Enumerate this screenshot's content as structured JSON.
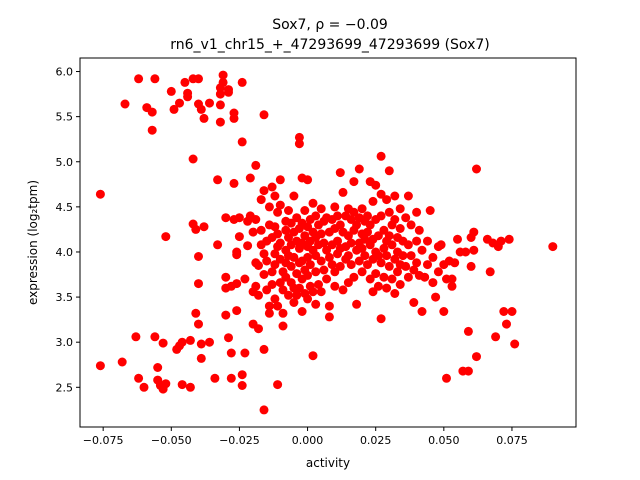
{
  "chart_data": {
    "type": "scatter",
    "title_line1": "Sox7, ρ = −0.09",
    "title_line2": "rn6_v1_chr15_+_47293699_47293699 (Sox7)",
    "xlabel": "activity",
    "ylabel": "expression (log₂tpm)",
    "xlim": [
      -0.0835,
      0.0985
    ],
    "ylim": [
      2.06,
      6.15
    ],
    "x_ticks": [
      -0.075,
      -0.05,
      -0.025,
      0.0,
      0.025,
      0.05,
      0.075
    ],
    "x_tick_labels": [
      "−0.075",
      "−0.050",
      "−0.025",
      "0.000",
      "0.025",
      "0.050",
      "0.075"
    ],
    "y_ticks": [
      2.5,
      3.0,
      3.5,
      4.0,
      4.5,
      5.0,
      5.5,
      6.0
    ],
    "y_tick_labels": [
      "2.5",
      "3.0",
      "3.5",
      "4.0",
      "4.5",
      "5.0",
      "5.5",
      "6.0"
    ],
    "grid": false,
    "marker_color": "#ff0000",
    "points": [
      [
        -0.076,
        4.64
      ],
      [
        -0.076,
        2.74
      ],
      [
        -0.067,
        5.64
      ],
      [
        -0.068,
        2.78
      ],
      [
        -0.063,
        3.06
      ],
      [
        -0.062,
        5.92
      ],
      [
        -0.062,
        2.6
      ],
      [
        -0.06,
        2.5
      ],
      [
        -0.059,
        5.6
      ],
      [
        -0.056,
        5.92
      ],
      [
        -0.057,
        5.55
      ],
      [
        -0.057,
        5.35
      ],
      [
        -0.056,
        3.06
      ],
      [
        -0.055,
        2.72
      ],
      [
        -0.055,
        2.58
      ],
      [
        -0.054,
        2.52
      ],
      [
        -0.053,
        2.99
      ],
      [
        -0.053,
        2.48
      ],
      [
        -0.052,
        4.17
      ],
      [
        -0.052,
        2.54
      ],
      [
        -0.05,
        5.78
      ],
      [
        -0.049,
        5.58
      ],
      [
        -0.048,
        2.92
      ],
      [
        -0.047,
        2.96
      ],
      [
        -0.047,
        5.65
      ],
      [
        -0.046,
        3.0
      ],
      [
        -0.046,
        2.53
      ],
      [
        -0.045,
        5.88
      ],
      [
        -0.044,
        5.76
      ],
      [
        -0.044,
        5.72
      ],
      [
        -0.043,
        2.5
      ],
      [
        -0.043,
        3.02
      ],
      [
        -0.042,
        5.92
      ],
      [
        -0.042,
        5.03
      ],
      [
        -0.042,
        4.31
      ],
      [
        -0.041,
        4.25
      ],
      [
        -0.041,
        3.32
      ],
      [
        -0.04,
        3.2
      ],
      [
        -0.04,
        3.65
      ],
      [
        -0.04,
        3.95
      ],
      [
        -0.04,
        5.92
      ],
      [
        -0.04,
        5.64
      ],
      [
        -0.039,
        5.58
      ],
      [
        -0.039,
        2.82
      ],
      [
        -0.039,
        2.98
      ],
      [
        -0.038,
        5.48
      ],
      [
        -0.038,
        4.28
      ],
      [
        -0.036,
        3.0
      ],
      [
        -0.036,
        5.65
      ],
      [
        -0.034,
        2.6
      ],
      [
        -0.033,
        4.8
      ],
      [
        -0.033,
        4.08
      ],
      [
        -0.032,
        5.82
      ],
      [
        -0.032,
        5.75
      ],
      [
        -0.032,
        5.44
      ],
      [
        -0.032,
        5.63
      ],
      [
        -0.031,
        5.96
      ],
      [
        -0.031,
        5.88
      ],
      [
        -0.03,
        4.38
      ],
      [
        -0.03,
        3.72
      ],
      [
        -0.03,
        3.3
      ],
      [
        -0.03,
        3.6
      ],
      [
        -0.029,
        3.05
      ],
      [
        -0.029,
        5.8
      ],
      [
        -0.029,
        5.77
      ],
      [
        -0.028,
        3.62
      ],
      [
        -0.028,
        2.88
      ],
      [
        -0.028,
        2.6
      ],
      [
        -0.027,
        5.54
      ],
      [
        -0.027,
        5.48
      ],
      [
        -0.027,
        4.36
      ],
      [
        -0.027,
        4.76
      ],
      [
        -0.026,
        4.0
      ],
      [
        -0.026,
        3.97
      ],
      [
        -0.026,
        3.65
      ],
      [
        -0.026,
        3.35
      ],
      [
        -0.025,
        4.38
      ],
      [
        -0.025,
        4.17
      ],
      [
        -0.024,
        5.88
      ],
      [
        -0.024,
        5.22
      ],
      [
        -0.024,
        2.64
      ],
      [
        -0.024,
        2.52
      ],
      [
        -0.023,
        2.88
      ],
      [
        -0.023,
        3.7
      ],
      [
        -0.022,
        4.34
      ],
      [
        -0.022,
        4.07
      ],
      [
        -0.021,
        4.82
      ],
      [
        -0.021,
        4.4
      ],
      [
        -0.02,
        3.56
      ],
      [
        -0.02,
        3.2
      ],
      [
        -0.02,
        4.22
      ],
      [
        -0.019,
        4.96
      ],
      [
        -0.019,
        4.36
      ],
      [
        -0.019,
        3.88
      ],
      [
        -0.019,
        3.62
      ],
      [
        -0.018,
        3.85
      ],
      [
        -0.018,
        3.52
      ],
      [
        -0.018,
        3.15
      ],
      [
        -0.017,
        4.58
      ],
      [
        -0.017,
        4.24
      ],
      [
        -0.017,
        4.08
      ],
      [
        -0.016,
        5.52
      ],
      [
        -0.016,
        4.68
      ],
      [
        -0.016,
        3.98
      ],
      [
        -0.016,
        3.75
      ],
      [
        -0.016,
        2.92
      ],
      [
        -0.016,
        2.25
      ],
      [
        -0.015,
        4.12
      ],
      [
        -0.015,
        3.9
      ],
      [
        -0.015,
        3.58
      ],
      [
        -0.014,
        4.5
      ],
      [
        -0.014,
        4.3
      ],
      [
        -0.014,
        3.4
      ],
      [
        -0.014,
        3.32
      ],
      [
        -0.013,
        4.72
      ],
      [
        -0.013,
        4.16
      ],
      [
        -0.013,
        3.78
      ],
      [
        -0.013,
        3.64
      ],
      [
        -0.012,
        4.62
      ],
      [
        -0.012,
        4.28
      ],
      [
        -0.012,
        3.98
      ],
      [
        -0.012,
        3.86
      ],
      [
        -0.012,
        3.48
      ],
      [
        -0.011,
        4.44
      ],
      [
        -0.011,
        4.2
      ],
      [
        -0.011,
        4.06
      ],
      [
        -0.011,
        3.4
      ],
      [
        -0.011,
        2.53
      ],
      [
        -0.01,
        4.8
      ],
      [
        -0.01,
        4.52
      ],
      [
        -0.01,
        4.1
      ],
      [
        -0.01,
        3.92
      ],
      [
        -0.01,
        3.66
      ],
      [
        -0.009,
        3.78
      ],
      [
        -0.009,
        3.58
      ],
      [
        -0.009,
        3.32
      ],
      [
        -0.009,
        3.18
      ],
      [
        -0.008,
        4.34
      ],
      [
        -0.008,
        4.24
      ],
      [
        -0.008,
        4.02
      ],
      [
        -0.008,
        3.88
      ],
      [
        -0.008,
        3.72
      ],
      [
        -0.007,
        4.46
      ],
      [
        -0.007,
        4.16
      ],
      [
        -0.007,
        3.96
      ],
      [
        -0.007,
        3.52
      ],
      [
        -0.006,
        4.32
      ],
      [
        -0.006,
        4.08
      ],
      [
        -0.006,
        3.84
      ],
      [
        -0.006,
        3.66
      ],
      [
        -0.005,
        4.62
      ],
      [
        -0.005,
        4.22
      ],
      [
        -0.005,
        3.94
      ],
      [
        -0.005,
        3.6
      ],
      [
        -0.005,
        3.44
      ],
      [
        -0.004,
        4.38
      ],
      [
        -0.004,
        4.12
      ],
      [
        -0.004,
        3.76
      ],
      [
        -0.004,
        3.52
      ],
      [
        -0.003,
        5.27
      ],
      [
        -0.003,
        5.2
      ],
      [
        -0.003,
        4.26
      ],
      [
        -0.003,
        4.04
      ],
      [
        -0.003,
        3.88
      ],
      [
        -0.003,
        3.6
      ],
      [
        -0.002,
        4.82
      ],
      [
        -0.002,
        4.32
      ],
      [
        -0.002,
        4.1
      ],
      [
        -0.002,
        3.9
      ],
      [
        -0.002,
        3.7
      ],
      [
        -0.002,
        3.34
      ],
      [
        -0.001,
        4.46
      ],
      [
        -0.001,
        4.18
      ],
      [
        -0.001,
        3.8
      ],
      [
        -0.001,
        3.54
      ],
      [
        0.0,
        4.8
      ],
      [
        0.0,
        4.28
      ],
      [
        0.0,
        4.06
      ],
      [
        0.0,
        3.94
      ],
      [
        0.0,
        3.74
      ],
      [
        0.0,
        3.48
      ],
      [
        0.001,
        4.36
      ],
      [
        0.001,
        4.12
      ],
      [
        0.001,
        3.86
      ],
      [
        0.001,
        3.62
      ],
      [
        0.002,
        4.54
      ],
      [
        0.002,
        4.22
      ],
      [
        0.002,
        4.02
      ],
      [
        0.002,
        3.56
      ],
      [
        0.002,
        2.85
      ],
      [
        0.003,
        4.4
      ],
      [
        0.003,
        4.16
      ],
      [
        0.003,
        3.96
      ],
      [
        0.003,
        3.78
      ],
      [
        0.003,
        3.42
      ],
      [
        0.004,
        4.3
      ],
      [
        0.004,
        4.08
      ],
      [
        0.004,
        3.64
      ],
      [
        0.005,
        4.48
      ],
      [
        0.005,
        4.2
      ],
      [
        0.005,
        3.9
      ],
      [
        0.005,
        3.56
      ],
      [
        0.006,
        4.34
      ],
      [
        0.006,
        4.1
      ],
      [
        0.006,
        3.8
      ],
      [
        0.007,
        4.38
      ],
      [
        0.007,
        4.02
      ],
      [
        0.007,
        3.7
      ],
      [
        0.008,
        4.22
      ],
      [
        0.008,
        3.94
      ],
      [
        0.008,
        3.4
      ],
      [
        0.008,
        3.28
      ],
      [
        0.009,
        4.36
      ],
      [
        0.009,
        4.08
      ],
      [
        0.009,
        3.86
      ],
      [
        0.01,
        4.5
      ],
      [
        0.01,
        4.26
      ],
      [
        0.01,
        3.78
      ],
      [
        0.01,
        3.62
      ],
      [
        0.011,
        4.4
      ],
      [
        0.011,
        4.12
      ],
      [
        0.011,
        3.98
      ],
      [
        0.012,
        4.88
      ],
      [
        0.012,
        4.3
      ],
      [
        0.012,
        4.04
      ],
      [
        0.012,
        3.84
      ],
      [
        0.013,
        4.66
      ],
      [
        0.013,
        4.22
      ],
      [
        0.013,
        3.58
      ],
      [
        0.014,
        4.4
      ],
      [
        0.014,
        4.06
      ],
      [
        0.014,
        3.92
      ],
      [
        0.015,
        4.48
      ],
      [
        0.015,
        4.18
      ],
      [
        0.015,
        3.96
      ],
      [
        0.015,
        3.66
      ],
      [
        0.016,
        4.36
      ],
      [
        0.016,
        4.1
      ],
      [
        0.016,
        3.86
      ],
      [
        0.017,
        4.78
      ],
      [
        0.017,
        4.44
      ],
      [
        0.017,
        4.24
      ],
      [
        0.017,
        3.72
      ],
      [
        0.018,
        4.3
      ],
      [
        0.018,
        4.02
      ],
      [
        0.018,
        3.42
      ],
      [
        0.019,
        4.92
      ],
      [
        0.019,
        4.38
      ],
      [
        0.019,
        4.1
      ],
      [
        0.019,
        3.9
      ],
      [
        0.02,
        4.48
      ],
      [
        0.02,
        4.2
      ],
      [
        0.02,
        4.04
      ],
      [
        0.02,
        3.78
      ],
      [
        0.021,
        4.34
      ],
      [
        0.021,
        4.14
      ],
      [
        0.021,
        3.96
      ],
      [
        0.022,
        4.4
      ],
      [
        0.022,
        4.22
      ],
      [
        0.022,
        3.86
      ],
      [
        0.023,
        4.78
      ],
      [
        0.023,
        4.3
      ],
      [
        0.023,
        4.08
      ],
      [
        0.023,
        3.7
      ],
      [
        0.024,
        4.56
      ],
      [
        0.024,
        4.14
      ],
      [
        0.024,
        3.92
      ],
      [
        0.024,
        3.56
      ],
      [
        0.025,
        4.74
      ],
      [
        0.025,
        4.36
      ],
      [
        0.025,
        4.0
      ],
      [
        0.025,
        3.76
      ],
      [
        0.026,
        4.18
      ],
      [
        0.026,
        3.96
      ],
      [
        0.026,
        3.62
      ],
      [
        0.027,
        5.06
      ],
      [
        0.027,
        4.64
      ],
      [
        0.027,
        4.4
      ],
      [
        0.027,
        3.88
      ],
      [
        0.027,
        3.26
      ],
      [
        0.028,
        4.24
      ],
      [
        0.028,
        4.04
      ],
      [
        0.028,
        3.72
      ],
      [
        0.029,
        4.58
      ],
      [
        0.029,
        4.12
      ],
      [
        0.029,
        3.96
      ],
      [
        0.029,
        3.6
      ],
      [
        0.03,
        4.9
      ],
      [
        0.03,
        4.44
      ],
      [
        0.03,
        4.18
      ],
      [
        0.03,
        3.84
      ],
      [
        0.031,
        4.3
      ],
      [
        0.031,
        4.08
      ],
      [
        0.031,
        3.7
      ],
      [
        0.032,
        4.62
      ],
      [
        0.032,
        4.36
      ],
      [
        0.032,
        3.92
      ],
      [
        0.032,
        3.54
      ],
      [
        0.033,
        4.16
      ],
      [
        0.033,
        4.0
      ],
      [
        0.033,
        3.78
      ],
      [
        0.034,
        4.48
      ],
      [
        0.034,
        4.26
      ],
      [
        0.034,
        3.86
      ],
      [
        0.034,
        3.64
      ],
      [
        0.035,
        4.12
      ],
      [
        0.035,
        3.96
      ],
      [
        0.036,
        4.38
      ],
      [
        0.036,
        3.84
      ],
      [
        0.037,
        4.62
      ],
      [
        0.037,
        4.08
      ],
      [
        0.037,
        3.72
      ],
      [
        0.038,
        4.3
      ],
      [
        0.038,
        3.96
      ],
      [
        0.039,
        3.8
      ],
      [
        0.039,
        3.44
      ],
      [
        0.04,
        4.44
      ],
      [
        0.04,
        4.12
      ],
      [
        0.04,
        3.88
      ],
      [
        0.041,
        4.24
      ],
      [
        0.041,
        3.74
      ],
      [
        0.042,
        3.34
      ],
      [
        0.042,
        4.02
      ],
      [
        0.043,
        3.72
      ],
      [
        0.044,
        4.12
      ],
      [
        0.044,
        3.86
      ],
      [
        0.045,
        4.46
      ],
      [
        0.046,
        3.94
      ],
      [
        0.046,
        3.66
      ],
      [
        0.047,
        3.5
      ],
      [
        0.048,
        4.06
      ],
      [
        0.048,
        3.78
      ],
      [
        0.049,
        4.08
      ],
      [
        0.05,
        3.34
      ],
      [
        0.05,
        3.86
      ],
      [
        0.051,
        3.7
      ],
      [
        0.051,
        2.6
      ],
      [
        0.052,
        3.9
      ],
      [
        0.053,
        3.62
      ],
      [
        0.053,
        3.7
      ],
      [
        0.054,
        3.88
      ],
      [
        0.055,
        4.14
      ],
      [
        0.056,
        4.0
      ],
      [
        0.057,
        2.68
      ],
      [
        0.058,
        4.0
      ],
      [
        0.059,
        3.12
      ],
      [
        0.059,
        2.68
      ],
      [
        0.06,
        4.16
      ],
      [
        0.06,
        3.84
      ],
      [
        0.061,
        4.02
      ],
      [
        0.061,
        4.22
      ],
      [
        0.062,
        4.92
      ],
      [
        0.062,
        2.84
      ],
      [
        0.066,
        4.14
      ],
      [
        0.067,
        3.78
      ],
      [
        0.068,
        4.1
      ],
      [
        0.069,
        3.06
      ],
      [
        0.07,
        4.06
      ],
      [
        0.071,
        4.12
      ],
      [
        0.072,
        3.34
      ],
      [
        0.073,
        3.2
      ],
      [
        0.074,
        4.14
      ],
      [
        0.075,
        3.34
      ],
      [
        0.076,
        2.98
      ],
      [
        0.09,
        4.06
      ]
    ]
  }
}
